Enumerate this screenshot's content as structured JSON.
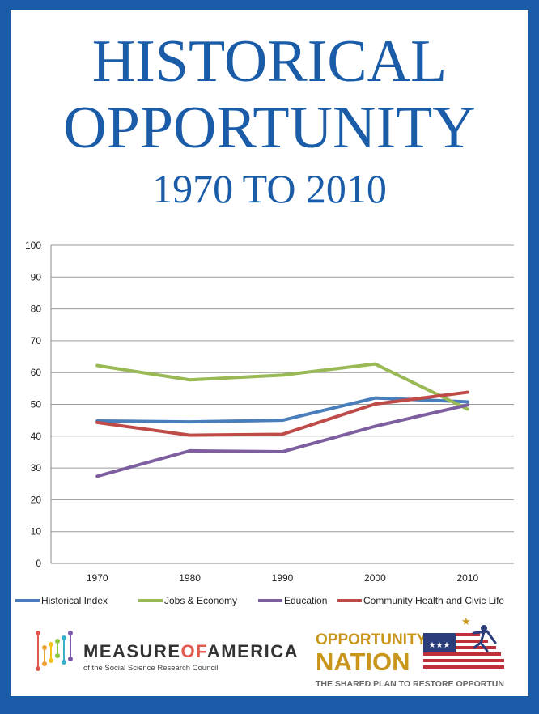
{
  "header": {
    "title_line1": "HISTORICAL",
    "title_line2": "OPPORTUNITY",
    "subtitle": "1970 TO 2010"
  },
  "chart_data": {
    "type": "line",
    "title": "HISTORICAL OPPORTUNITY 1970 TO 2010",
    "xlabel": "",
    "ylabel": "",
    "categories": [
      "1970",
      "1980",
      "1990",
      "2000",
      "2010"
    ],
    "ylim": [
      0,
      100
    ],
    "yticks": [
      0,
      10,
      20,
      30,
      40,
      50,
      60,
      70,
      80,
      90,
      100
    ],
    "grid": true,
    "legend_position": "bottom",
    "series": [
      {
        "name": "Historical Index",
        "color": "#4a7ebb",
        "values": [
          44.8,
          44.5,
          45.0,
          52.0,
          50.8
        ]
      },
      {
        "name": "Jobs & Economy",
        "color": "#98b954",
        "values": [
          62.2,
          57.7,
          59.2,
          62.7,
          48.5
        ]
      },
      {
        "name": "Education",
        "color": "#7d5fa0",
        "values": [
          27.4,
          35.4,
          35.1,
          43.1,
          49.8
        ]
      },
      {
        "name": "Community Health and Civic Life",
        "color": "#be4b48",
        "values": [
          44.3,
          40.3,
          40.6,
          50.1,
          53.8
        ]
      }
    ]
  },
  "logos": {
    "moa_name": "MEASURE OF AMERICA",
    "moa_name_part1": "MEASURE",
    "moa_name_part2": "OF",
    "moa_name_part3": "AMERICA",
    "moa_tagline": "of the Social Science Research Council",
    "on_line1": "OPPORTUNITY",
    "on_line2": "NATION",
    "on_tagline": "THE SHARED PLAN TO RESTORE OPPORTUNITY"
  },
  "colors": {
    "frame": "#1a5ca8",
    "title": "#1a5ca8",
    "on_gold": "#c9951a",
    "flag_red": "#c0303b",
    "flag_blue": "#2b3d7a"
  }
}
